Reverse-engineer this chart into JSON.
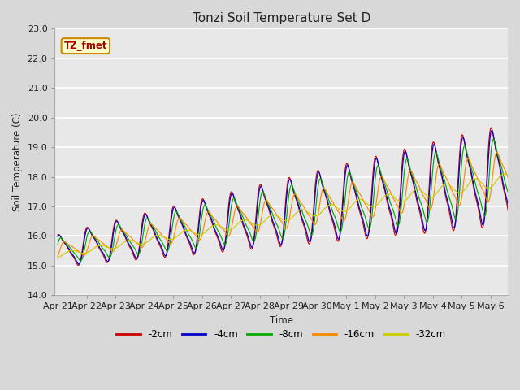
{
  "title": "Tonzi Soil Temperature Set D",
  "ylabel": "Soil Temperature (C)",
  "xlabel": "Time",
  "annotation_text": "TZ_fmet",
  "ylim": [
    14.0,
    23.0
  ],
  "yticks": [
    14.0,
    15.0,
    16.0,
    17.0,
    18.0,
    19.0,
    20.0,
    21.0,
    22.0,
    23.0
  ],
  "xtick_labels": [
    "Apr 21",
    "Apr 22",
    "Apr 23",
    "Apr 24",
    "Apr 25",
    "Apr 26",
    "Apr 27",
    "Apr 28",
    "Apr 29",
    "Apr 30",
    "May 1",
    "May 2",
    "May 3",
    "May 4",
    "May 5",
    "May 6"
  ],
  "series": [
    {
      "label": "-2cm",
      "color": "#cc0000"
    },
    {
      "label": "-4cm",
      "color": "#0000cc"
    },
    {
      "label": "-8cm",
      "color": "#00aa00"
    },
    {
      "label": "-16cm",
      "color": "#ff8800"
    },
    {
      "label": "-32cm",
      "color": "#cccc00"
    }
  ],
  "fig_bg_color": "#d8d8d8",
  "plot_bg_color": "#e8e8e8",
  "annotation_bg": "#ffffcc",
  "annotation_border": "#cc8800",
  "grid_color": "#ffffff"
}
